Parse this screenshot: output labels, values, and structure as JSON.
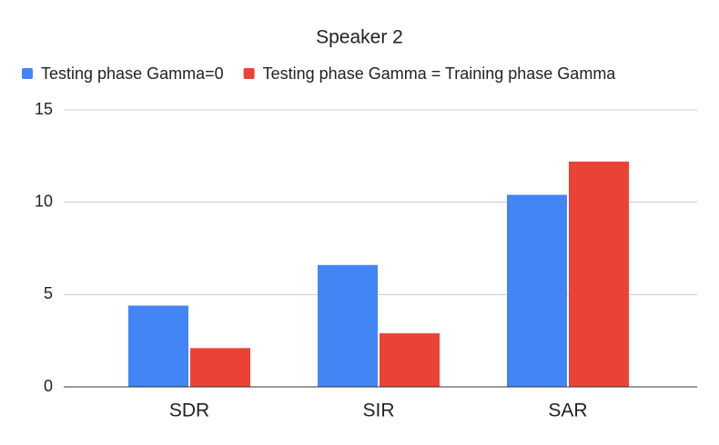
{
  "chart_data": {
    "type": "bar",
    "title": "Speaker 2",
    "categories": [
      "SDR",
      "SIR",
      "SAR"
    ],
    "series": [
      {
        "name": "Testing phase Gamma=0",
        "color": "#4285f4",
        "values": [
          4.4,
          6.6,
          10.4
        ]
      },
      {
        "name": "Testing phase Gamma = Training phase Gamma",
        "color": "#ea4335",
        "values": [
          2.1,
          2.9,
          12.2
        ]
      }
    ],
    "ylim": [
      0,
      15
    ],
    "yticks": [
      0,
      5,
      10,
      15
    ],
    "grid": true,
    "legend": "top"
  }
}
